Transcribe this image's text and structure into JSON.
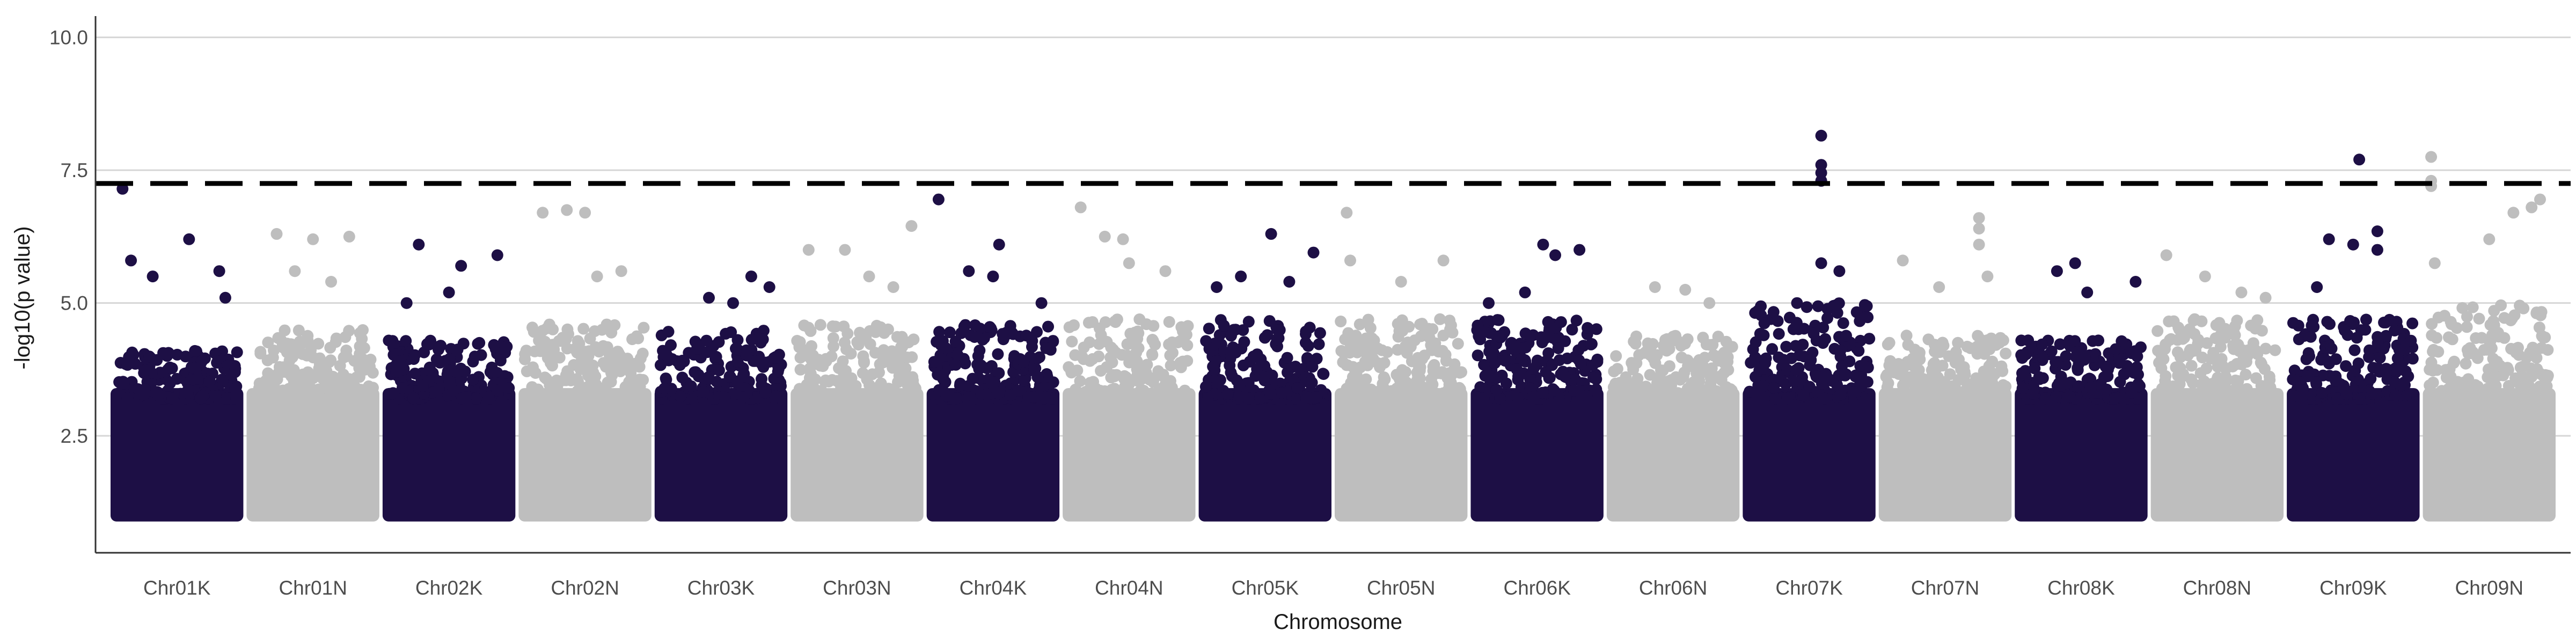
{
  "chart_data": {
    "type": "scatter",
    "xlabel": "Chromosome",
    "ylabel": "-log10(p value)",
    "ylim": [
      0.3,
      10.4
    ],
    "yticks": [
      2.5,
      5.0,
      7.5,
      10.0
    ],
    "ytick_labels": [
      "2.5",
      "5.0",
      "7.5",
      "10.0"
    ],
    "grid": "horizontal major lines at y ticks",
    "threshold": 7.25,
    "threshold_style": "dashed black",
    "colors": {
      "odd": "#1d0f45",
      "even": "#bebebe",
      "threshold": "#000000",
      "grid": "#d6d6d6"
    },
    "chromosomes": [
      {
        "label": "Chr01K",
        "color": "odd",
        "base_max": 3.7,
        "peaks": [
          [
            0.05,
            7.15
          ],
          [
            0.6,
            6.2
          ],
          [
            0.12,
            5.8
          ],
          [
            0.3,
            5.5
          ],
          [
            0.85,
            5.6
          ],
          [
            0.9,
            5.1
          ]
        ]
      },
      {
        "label": "Chr01N",
        "color": "even",
        "base_max": 4.1,
        "peaks": [
          [
            0.2,
            6.3
          ],
          [
            0.5,
            6.2
          ],
          [
            0.8,
            6.25
          ],
          [
            0.35,
            5.6
          ],
          [
            0.65,
            5.4
          ]
        ]
      },
      {
        "label": "Chr02K",
        "color": "odd",
        "base_max": 3.9,
        "peaks": [
          [
            0.25,
            6.1
          ],
          [
            0.6,
            5.7
          ],
          [
            0.9,
            5.9
          ],
          [
            0.5,
            5.2
          ],
          [
            0.15,
            5.0
          ]
        ]
      },
      {
        "label": "Chr02N",
        "color": "even",
        "base_max": 4.2,
        "peaks": [
          [
            0.15,
            6.7
          ],
          [
            0.35,
            6.75
          ],
          [
            0.5,
            6.7
          ],
          [
            0.8,
            5.6
          ],
          [
            0.6,
            5.5
          ]
        ]
      },
      {
        "label": "Chr03K",
        "color": "odd",
        "base_max": 4.1,
        "peaks": [
          [
            0.4,
            5.1
          ],
          [
            0.75,
            5.5
          ],
          [
            0.9,
            5.3
          ],
          [
            0.6,
            5.0
          ]
        ]
      },
      {
        "label": "Chr03N",
        "color": "even",
        "base_max": 4.2,
        "peaks": [
          [
            0.1,
            6.0
          ],
          [
            0.4,
            6.0
          ],
          [
            0.6,
            5.5
          ],
          [
            0.95,
            6.45
          ],
          [
            0.8,
            5.3
          ]
        ]
      },
      {
        "label": "Chr04K",
        "color": "odd",
        "base_max": 4.2,
        "peaks": [
          [
            0.05,
            6.95
          ],
          [
            0.3,
            5.6
          ],
          [
            0.5,
            5.5
          ],
          [
            0.55,
            6.1
          ],
          [
            0.9,
            5.0
          ]
        ]
      },
      {
        "label": "Chr04N",
        "color": "even",
        "base_max": 4.3,
        "peaks": [
          [
            0.1,
            6.8
          ],
          [
            0.3,
            6.25
          ],
          [
            0.45,
            6.2
          ],
          [
            0.5,
            5.75
          ],
          [
            0.8,
            5.6
          ]
        ]
      },
      {
        "label": "Chr05K",
        "color": "odd",
        "base_max": 4.3,
        "peaks": [
          [
            0.3,
            5.5
          ],
          [
            0.55,
            6.3
          ],
          [
            0.7,
            5.4
          ],
          [
            0.9,
            5.95
          ],
          [
            0.1,
            5.3
          ]
        ]
      },
      {
        "label": "Chr05N",
        "color": "even",
        "base_max": 4.3,
        "peaks": [
          [
            0.05,
            6.7
          ],
          [
            0.08,
            5.8
          ],
          [
            0.85,
            5.8
          ],
          [
            0.5,
            5.4
          ]
        ]
      },
      {
        "label": "Chr06K",
        "color": "odd",
        "base_max": 4.3,
        "peaks": [
          [
            0.1,
            5.0
          ],
          [
            0.55,
            6.1
          ],
          [
            0.65,
            5.9
          ],
          [
            0.85,
            6.0
          ],
          [
            0.4,
            5.2
          ]
        ]
      },
      {
        "label": "Chr06N",
        "color": "even",
        "base_max": 4.0,
        "peaks": [
          [
            0.35,
            5.3
          ],
          [
            0.6,
            5.25
          ],
          [
            0.8,
            5.0
          ]
        ]
      },
      {
        "label": "Chr07K",
        "color": "odd",
        "base_max": 4.6,
        "peaks": [
          [
            0.6,
            8.15
          ],
          [
            0.6,
            7.6
          ],
          [
            0.6,
            7.45
          ],
          [
            0.6,
            7.3
          ],
          [
            0.6,
            5.75
          ],
          [
            0.75,
            5.6
          ],
          [
            0.4,
            5.0
          ]
        ]
      },
      {
        "label": "Chr07N",
        "color": "even",
        "base_max": 4.0,
        "peaks": [
          [
            0.15,
            5.8
          ],
          [
            0.78,
            6.6
          ],
          [
            0.78,
            6.4
          ],
          [
            0.78,
            6.1
          ],
          [
            0.45,
            5.3
          ],
          [
            0.85,
            5.5
          ]
        ]
      },
      {
        "label": "Chr08K",
        "color": "odd",
        "base_max": 3.9,
        "peaks": [
          [
            0.3,
            5.6
          ],
          [
            0.45,
            5.75
          ],
          [
            0.55,
            5.2
          ],
          [
            0.95,
            5.4
          ]
        ]
      },
      {
        "label": "Chr08N",
        "color": "even",
        "base_max": 4.3,
        "peaks": [
          [
            0.08,
            5.9
          ],
          [
            0.4,
            5.5
          ],
          [
            0.7,
            5.2
          ],
          [
            0.9,
            5.1
          ]
        ]
      },
      {
        "label": "Chr09K",
        "color": "odd",
        "base_max": 4.3,
        "peaks": [
          [
            0.55,
            7.7
          ],
          [
            0.3,
            6.2
          ],
          [
            0.5,
            6.1
          ],
          [
            0.7,
            6.35
          ],
          [
            0.7,
            6.0
          ],
          [
            0.2,
            5.3
          ]
        ]
      },
      {
        "label": "Chr09N",
        "color": "even",
        "base_max": 4.6,
        "peaks": [
          [
            0.02,
            7.75
          ],
          [
            0.02,
            7.3
          ],
          [
            0.02,
            7.2
          ],
          [
            0.05,
            5.75
          ],
          [
            0.7,
            6.7
          ],
          [
            0.85,
            6.8
          ],
          [
            0.92,
            6.95
          ],
          [
            0.5,
            6.2
          ]
        ]
      }
    ]
  }
}
